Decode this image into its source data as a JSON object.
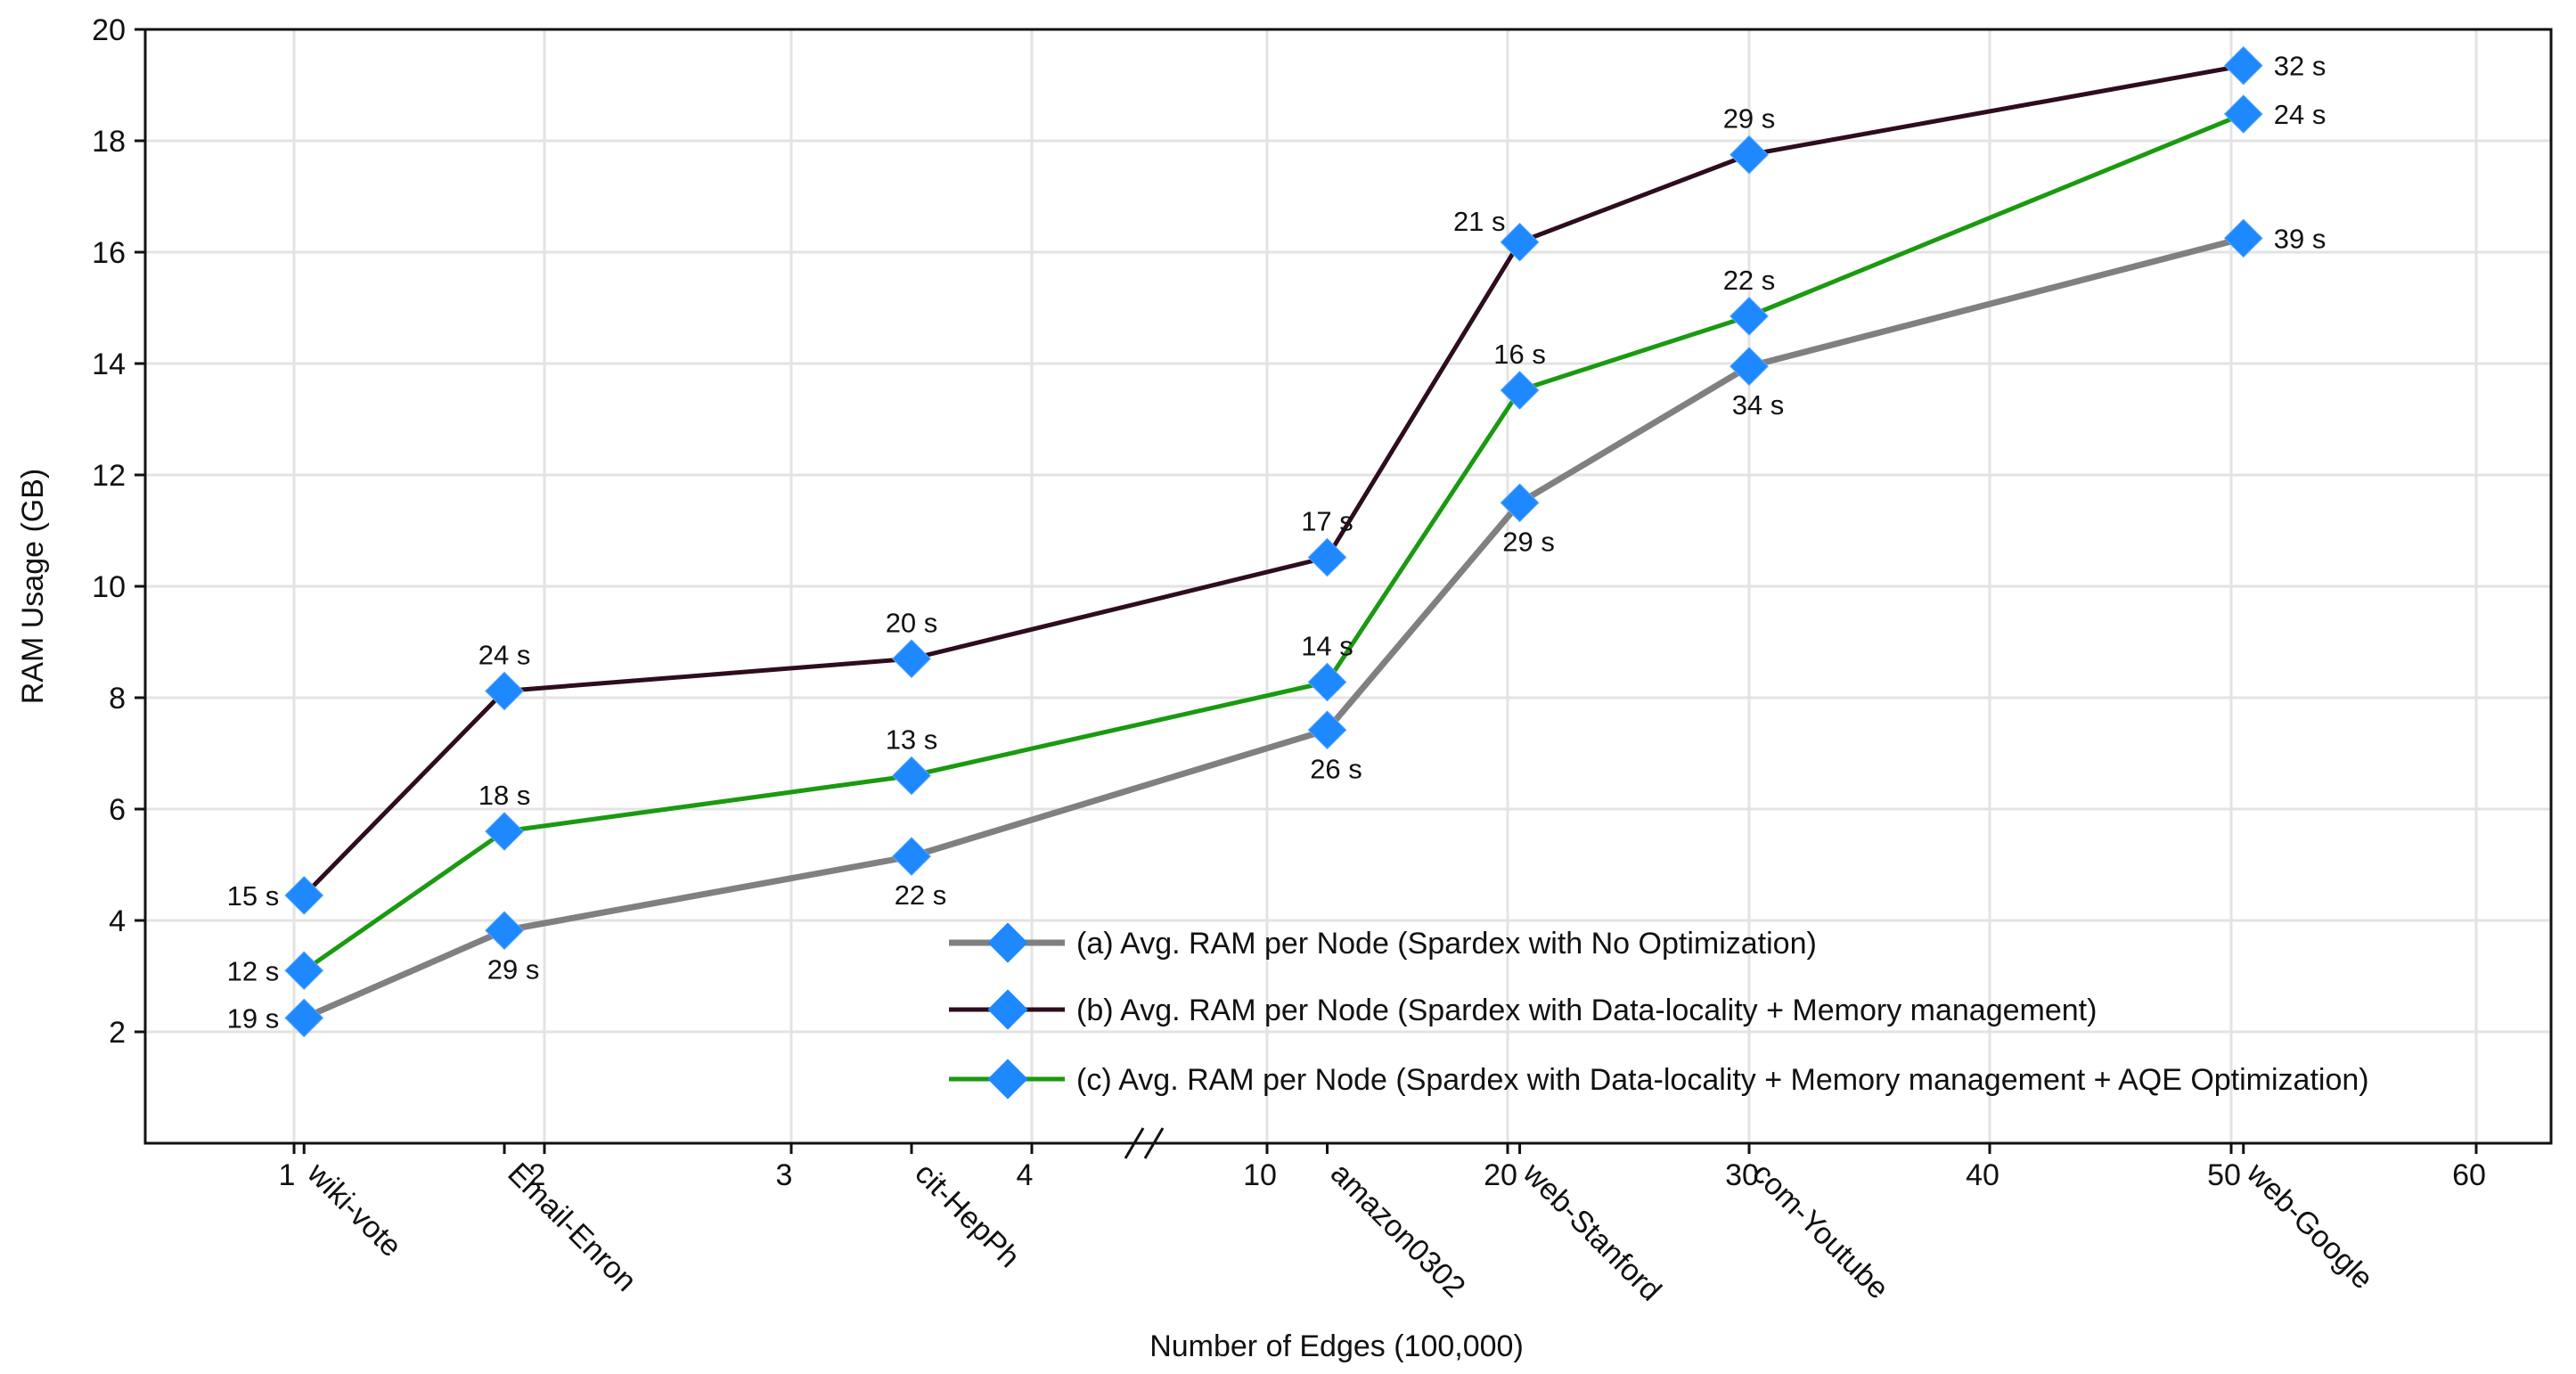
{
  "chart_data": {
    "type": "line",
    "title": "",
    "xlabel": "Number of Edges (100,000)",
    "ylabel": "RAM Usage (GB)",
    "ylim": [
      0,
      20
    ],
    "yticks": [
      2,
      4,
      6,
      8,
      10,
      12,
      14,
      16,
      18,
      20
    ],
    "grid": true,
    "xaxis_break": "between 4 and 10",
    "xticks": [
      "1",
      "2",
      "3",
      "4",
      "10",
      "20",
      "30",
      "40",
      "50",
      "60"
    ],
    "categories": [
      "wiki-vote",
      "Email-Enron",
      "cit-HepPh",
      "amazon0302",
      "web-Stanford",
      "com-Youtube",
      "web-Google"
    ],
    "x": [
      1.04,
      1.84,
      3.5,
      12.5,
      20.5,
      30,
      50.5
    ],
    "legend_position": "bottom-right",
    "series": [
      {
        "name": "(a) Avg. RAM per Node (Spardex with No Optimization)",
        "color": "#808080",
        "values": [
          2.25,
          3.82,
          5.15,
          7.42,
          11.5,
          13.95,
          16.25
        ],
        "labels": [
          "19 s",
          "29 s",
          "22 s",
          "26 s",
          "29 s",
          "34 s",
          "39 s"
        ]
      },
      {
        "name": "(b) Avg. RAM per Node (Spardex with Data-locality + Memory management)",
        "color": "#2e0d1f",
        "values": [
          4.45,
          8.12,
          8.7,
          10.52,
          16.18,
          17.75,
          19.35
        ],
        "labels": [
          "15 s",
          "24 s",
          "20 s",
          "17 s",
          "21 s",
          "29 s",
          "32 s"
        ]
      },
      {
        "name": "(c) Avg. RAM per Node (Spardex with Data-locality + Memory management + AQE Optimization)",
        "color": "#1a9a10",
        "values": [
          3.1,
          5.6,
          6.6,
          8.28,
          13.52,
          14.85,
          18.48
        ],
        "labels": [
          "12 s",
          "18 s",
          "13 s",
          "14 s",
          "16 s",
          "22 s",
          "24 s"
        ]
      }
    ],
    "marker_color": "#1e88ff"
  }
}
